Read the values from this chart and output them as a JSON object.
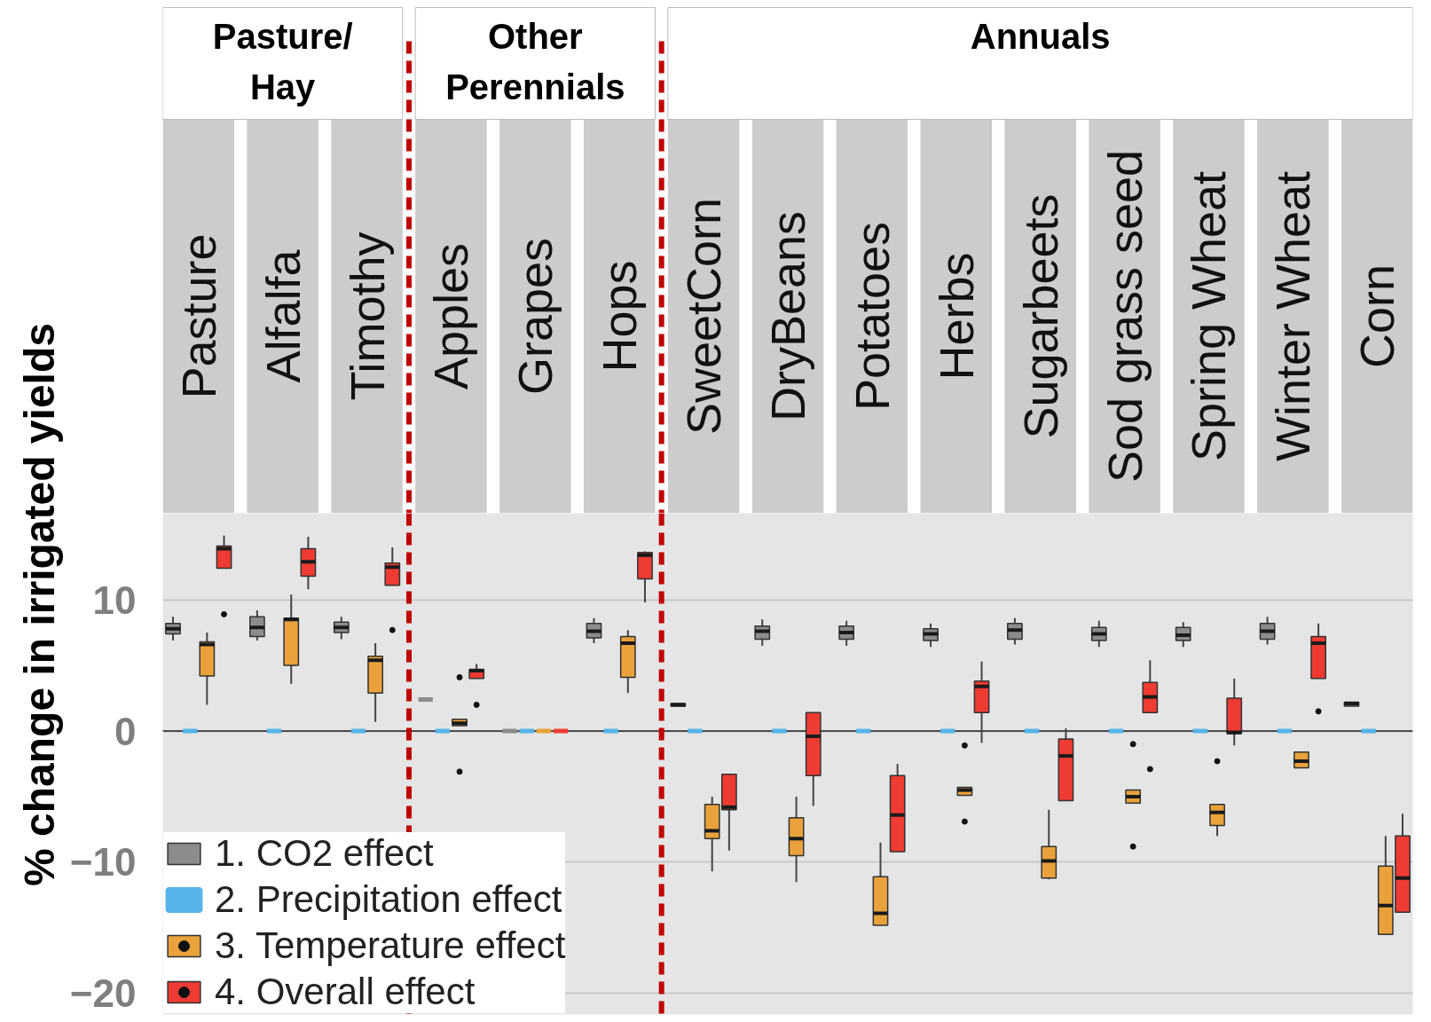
{
  "chart_data": {
    "type": "box",
    "ylabel": "% change in irrigated yields",
    "categories": [
      "Pasture",
      "Alfalfa",
      "Timothy",
      "Apples",
      "Grapes",
      "Hops",
      "SweetCorn",
      "DryBeans",
      "Potatoes",
      "Herbs",
      "Sugarbeets",
      "Sod grass seed",
      "Spring Wheat",
      "Winter Wheat",
      "Corn"
    ],
    "series": [
      {
        "name": "1. CO2 effect",
        "color": "#8c8c8c",
        "boxes": [
          {
            "low": 6.9,
            "q1": 7.4,
            "median": 7.8,
            "q3": 8.2,
            "high": 8.7
          },
          {
            "low": 6.9,
            "q1": 7.2,
            "median": 7.9,
            "q3": 8.7,
            "high": 9.2
          },
          {
            "low": 7.0,
            "q1": 7.5,
            "median": 7.9,
            "q3": 8.3,
            "high": 8.7
          },
          {
            "low": 2.4,
            "q1": 2.4,
            "median": 2.4,
            "q3": 2.4,
            "high": 2.4
          },
          {
            "low": 0,
            "q1": 0,
            "median": 0,
            "q3": 0,
            "high": 0
          },
          {
            "low": 6.7,
            "q1": 7.1,
            "median": 7.6,
            "q3": 8.2,
            "high": 8.6
          },
          {
            "low": 1.9,
            "q1": 1.9,
            "median": 2.0,
            "q3": 2.1,
            "high": 2.1
          },
          {
            "low": 6.5,
            "q1": 7.0,
            "median": 7.6,
            "q3": 8.0,
            "high": 8.5
          },
          {
            "low": 6.5,
            "q1": 7.0,
            "median": 7.5,
            "q3": 8.0,
            "high": 8.4
          },
          {
            "low": 6.4,
            "q1": 6.9,
            "median": 7.4,
            "q3": 7.8,
            "high": 8.2
          },
          {
            "low": 6.6,
            "q1": 7.0,
            "median": 7.7,
            "q3": 8.2,
            "high": 8.6
          },
          {
            "low": 6.4,
            "q1": 6.9,
            "median": 7.4,
            "q3": 7.9,
            "high": 8.4
          },
          {
            "low": 6.4,
            "q1": 6.9,
            "median": 7.3,
            "q3": 7.9,
            "high": 8.3
          },
          {
            "low": 6.6,
            "q1": 7.0,
            "median": 7.6,
            "q3": 8.2,
            "high": 8.7
          },
          {
            "low": 1.9,
            "q1": 1.9,
            "median": 2.1,
            "q3": 2.2,
            "high": 2.2
          }
        ]
      },
      {
        "name": "2. Precipitation effect",
        "color": "#56b4e9",
        "boxes": [
          {
            "low": 0,
            "q1": 0,
            "median": 0,
            "q3": 0,
            "high": 0
          },
          {
            "low": 0,
            "q1": 0,
            "median": 0,
            "q3": 0,
            "high": 0
          },
          {
            "low": 0,
            "q1": 0,
            "median": 0,
            "q3": 0,
            "high": 0
          },
          {
            "low": 0,
            "q1": 0,
            "median": 0,
            "q3": 0,
            "high": 0
          },
          {
            "low": 0,
            "q1": 0,
            "median": 0,
            "q3": 0,
            "high": 0
          },
          {
            "low": 0,
            "q1": 0,
            "median": 0,
            "q3": 0,
            "high": 0
          },
          {
            "low": 0,
            "q1": 0,
            "median": 0,
            "q3": 0,
            "high": 0
          },
          {
            "low": 0,
            "q1": 0,
            "median": 0,
            "q3": 0,
            "high": 0
          },
          {
            "low": 0,
            "q1": 0,
            "median": 0,
            "q3": 0,
            "high": 0
          },
          {
            "low": 0,
            "q1": 0,
            "median": 0,
            "q3": 0,
            "high": 0
          },
          {
            "low": 0,
            "q1": 0,
            "median": 0,
            "q3": 0,
            "high": 0
          },
          {
            "low": 0,
            "q1": 0,
            "median": 0,
            "q3": 0,
            "high": 0
          },
          {
            "low": 0,
            "q1": 0,
            "median": 0,
            "q3": 0,
            "high": 0
          },
          {
            "low": 0,
            "q1": 0,
            "median": 0,
            "q3": 0,
            "high": 0
          },
          {
            "low": 0,
            "q1": 0,
            "median": 0,
            "q3": 0,
            "high": 0
          }
        ]
      },
      {
        "name": "3. Temperature effect",
        "color": "#e9a23b",
        "boxes": [
          {
            "low": 2.0,
            "q1": 4.2,
            "median": 6.6,
            "q3": 6.8,
            "high": 7.5
          },
          {
            "low": 3.6,
            "q1": 5.0,
            "median": 8.5,
            "q3": 8.6,
            "high": 10.4
          },
          {
            "low": 0.7,
            "q1": 2.9,
            "median": 5.4,
            "q3": 5.7,
            "high": 6.7
          },
          {
            "low": 0.4,
            "q1": 0.4,
            "median": 0.6,
            "q3": 0.9,
            "high": 0.9,
            "outliers": [
              4.1,
              -3.1
            ]
          },
          {
            "low": 0,
            "q1": 0,
            "median": 0,
            "q3": 0,
            "high": 0
          },
          {
            "low": 2.9,
            "q1": 4.1,
            "median": 6.7,
            "q3": 7.2,
            "high": 7.7
          },
          {
            "low": -10.7,
            "q1": -8.2,
            "median": -7.6,
            "q3": -5.6,
            "high": -5.0
          },
          {
            "low": -11.5,
            "q1": -9.5,
            "median": -8.2,
            "q3": -6.6,
            "high": -5.0
          },
          {
            "low": -14.8,
            "q1": -14.8,
            "median": -13.9,
            "q3": -11.1,
            "high": -8.5
          },
          {
            "low": -4.9,
            "q1": -4.9,
            "median": -4.5,
            "q3": -4.3,
            "high": -4.3,
            "outliers": [
              -1.1,
              -6.9
            ]
          },
          {
            "low": -11.3,
            "q1": -11.2,
            "median": -9.9,
            "q3": -8.8,
            "high": -6.0
          },
          {
            "low": -5.5,
            "q1": -5.5,
            "median": -5.0,
            "q3": -4.5,
            "high": -4.5,
            "outliers": [
              -1.0,
              -8.8
            ]
          },
          {
            "low": -8.0,
            "q1": -7.2,
            "median": -6.2,
            "q3": -5.6,
            "high": -5.6,
            "outliers": [
              -2.3
            ]
          },
          {
            "low": -2.8,
            "q1": -2.8,
            "median": -2.3,
            "q3": -1.6,
            "high": -1.6
          },
          {
            "low": -15.5,
            "q1": -15.5,
            "median": -13.3,
            "q3": -10.3,
            "high": -8.0
          }
        ]
      },
      {
        "name": "4. Overall effect",
        "color": "#ee3b33",
        "boxes": [
          {
            "low": 12.4,
            "q1": 12.4,
            "median": 13.9,
            "q3": 14.1,
            "high": 14.9,
            "outliers": [
              8.9
            ]
          },
          {
            "low": 10.8,
            "q1": 11.8,
            "median": 12.9,
            "q3": 13.9,
            "high": 14.8
          },
          {
            "low": 11.1,
            "q1": 11.1,
            "median": 12.5,
            "q3": 12.8,
            "high": 14.0,
            "outliers": [
              7.7
            ]
          },
          {
            "low": 4.0,
            "q1": 4.0,
            "median": 4.6,
            "q3": 4.7,
            "high": 5.1,
            "outliers": [
              2.0
            ]
          },
          {
            "low": 0,
            "q1": 0,
            "median": 0,
            "q3": 0,
            "high": 0
          },
          {
            "low": 9.8,
            "q1": 11.6,
            "median": 13.4,
            "q3": 13.6,
            "high": 13.7
          },
          {
            "low": -9.1,
            "q1": -6.0,
            "median": -5.8,
            "q3": -3.3,
            "high": -3.3
          },
          {
            "low": -5.7,
            "q1": -3.4,
            "median": -0.4,
            "q3": 1.4,
            "high": 1.4
          },
          {
            "low": -9.2,
            "q1": -9.2,
            "median": -6.4,
            "q3": -3.4,
            "high": -2.5
          },
          {
            "low": -0.9,
            "q1": 1.4,
            "median": 3.4,
            "q3": 3.8,
            "high": 5.3
          },
          {
            "low": -5.3,
            "q1": -5.3,
            "median": -1.9,
            "q3": -0.6,
            "high": 0.2
          },
          {
            "low": 1.4,
            "q1": 1.4,
            "median": 2.6,
            "q3": 3.7,
            "high": 5.4,
            "outliers": [
              -2.9
            ]
          },
          {
            "low": -1.1,
            "q1": -0.2,
            "median": -0.1,
            "q3": 2.5,
            "high": 4.0
          },
          {
            "low": 4.0,
            "q1": 4.0,
            "median": 6.7,
            "q3": 7.2,
            "high": 8.2,
            "outliers": [
              1.5
            ]
          },
          {
            "low": -13.8,
            "q1": -13.8,
            "median": -11.2,
            "q3": -8.0,
            "high": -6.3
          }
        ]
      }
    ],
    "ylim": [
      -21.6,
      16.6
    ],
    "yticks": [
      -20,
      -10,
      0,
      10
    ],
    "grid": "y",
    "legend": "bottom left",
    "ref_lines": [
      {
        "axis": "y",
        "value": 0,
        "color": "#4d4d4d"
      }
    ],
    "annotations": [
      "Pasture/\nHay",
      "Other\nPerennials",
      "Annuals"
    ]
  }
}
